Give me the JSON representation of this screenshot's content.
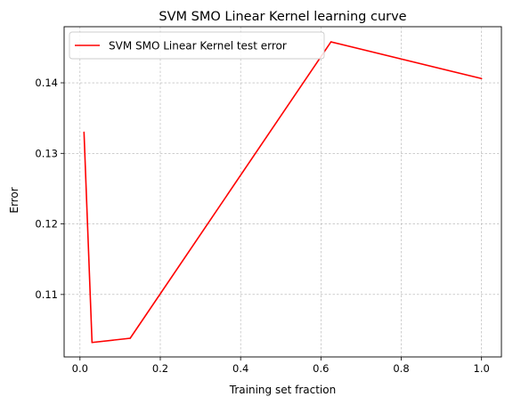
{
  "chart_data": {
    "type": "line",
    "title": "SVM SMO Linear Kernel learning curve",
    "xlabel": "Training set fraction",
    "ylabel": "Error",
    "xlim": [
      -0.0395,
      1.0495
    ],
    "ylim": [
      0.10115,
      0.14795
    ],
    "xticks": [
      0.0,
      0.2,
      0.4,
      0.6,
      0.8,
      1.0
    ],
    "xtick_labels": [
      "0.0",
      "0.2",
      "0.4",
      "0.6",
      "0.8",
      "1.0"
    ],
    "yticks": [
      0.11,
      0.12,
      0.13,
      0.14
    ],
    "ytick_labels": [
      "0.11",
      "0.12",
      "0.13",
      "0.14"
    ],
    "grid": true,
    "legend_position": "upper left",
    "series": [
      {
        "name": "SVM SMO Linear Kernel test error",
        "color": "#ff0000",
        "x": [
          0.01,
          0.03,
          0.125,
          0.625,
          1.0
        ],
        "y": [
          0.133,
          0.1032,
          0.1038,
          0.1458,
          0.1406
        ]
      }
    ]
  }
}
